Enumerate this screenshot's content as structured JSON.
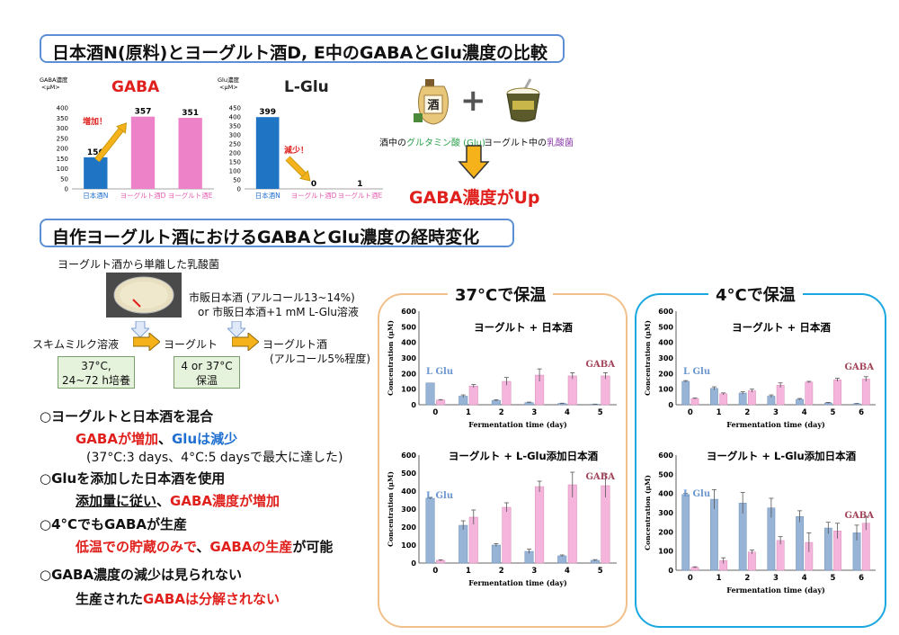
{
  "top_title": "日本酒N(原料)とヨーグルト酒D, E中のGABAとGlu濃度の比較",
  "mid_title": "自作ヨーグルト酒におけるGABAとGlu濃度の経時変化",
  "explain": {
    "sake_label_pre": "酒中の",
    "sake_label_hl": "グルタミン酸 (Glu)",
    "yog_label_pre": "ヨーグルト中の",
    "yog_label_hl": "乳酸菌",
    "plus": "+",
    "result": "GABA濃度がUp",
    "sake_jar_text": "酒"
  },
  "flow": {
    "isolated": "ヨーグルト酒から単離した乳酸菌",
    "sake_line1": "市販日本酒 (アルコール13~14%)",
    "sake_line2": "or  市販日本酒+1 mM L-Glu溶液",
    "skim": "スキムミルク溶液",
    "yogurt": "ヨーグルト",
    "yogurt_sake": "ヨーグルト酒",
    "alcohol": "(アルコール5%程度)",
    "box1_l1": "37°C,",
    "box1_l2": "24~72 h培養",
    "box2_l1": "4 or 37°C",
    "box2_l2": "保温"
  },
  "bullets": {
    "b1": "○ヨーグルトと日本酒を混合",
    "b1a_red": "GABAが増加",
    "b1a_sep": "、",
    "b1a_blue": "Gluは減少",
    "b1b": "(37°C:3 days、4°C:5 daysで最大に達した)",
    "b2": "○Gluを添加した日本酒を使用",
    "b2a_ul": "添加量に従い",
    "b2a_sep": "、",
    "b2a_red": "GABA濃度が増加",
    "b3": "○4°CでもGABAが生産",
    "b3a_red1": "低温での貯蔵のみで",
    "b3a_sep": "、",
    "b3a_red2": "GABAの生産",
    "b3a_tail": "が可能",
    "b4": "○GABA濃度の減少は見られない",
    "b4a_pre": "生産された",
    "b4a_red": "GABAは分解されない"
  },
  "panels": {
    "p37": "37°Cで保温",
    "p4": "4°Cで保温"
  },
  "colors": {
    "blue_bar": "#1f74c4",
    "pink_bar": "#ee82c8",
    "series_blue": "#97b3d6",
    "series_pink": "#f4b4dc",
    "panel37_border": "#f2c08a",
    "panel4_border": "#1aa8e0",
    "title_border": "#5b8fd6",
    "accent_red": "#e0201c"
  },
  "chart_data": [
    {
      "id": "gaba-bar",
      "type": "bar",
      "title": "GABA",
      "ylabel": "GABA濃度",
      "yunit": "<μM>",
      "ylim": [
        0,
        400
      ],
      "yticks": [
        0,
        50,
        100,
        150,
        200,
        250,
        300,
        350,
        400
      ],
      "categories": [
        "日本酒N",
        "ヨーグルト酒D",
        "ヨーグルト酒E"
      ],
      "values": [
        156,
        357,
        351
      ],
      "bar_colors": [
        "#1f74c4",
        "#ee82c8",
        "#ee82c8"
      ],
      "annotation": "増加！"
    },
    {
      "id": "glu-bar",
      "type": "bar",
      "title": "L-Glu",
      "ylabel": "Glu濃度",
      "yunit": "<μM>",
      "ylim": [
        0,
        450
      ],
      "yticks": [
        0,
        50,
        100,
        150,
        200,
        250,
        300,
        350,
        400,
        450
      ],
      "categories": [
        "日本酒N",
        "ヨーグルト酒D",
        "ヨーグルト酒E"
      ],
      "values": [
        399,
        0,
        1
      ],
      "bar_colors": [
        "#1f74c4",
        "#ee82c8",
        "#ee82c8"
      ],
      "annotation": "減少！"
    },
    {
      "id": "c37-a",
      "type": "bar",
      "title": "ヨーグルト + 日本酒",
      "xlabel": "Fermentation time (day)",
      "ylabel": "Concentration (μM)",
      "ylim": [
        0,
        600
      ],
      "yticks": [
        0,
        100,
        200,
        300,
        400,
        500,
        600
      ],
      "x": [
        0,
        1,
        2,
        3,
        4,
        5
      ],
      "label_glu": "L Glu",
      "label_gaba": "GABA",
      "series": [
        {
          "name": "L Glu",
          "values": [
            140,
            55,
            28,
            14,
            8,
            3
          ],
          "err": [
            0,
            8,
            4,
            3,
            2,
            1
          ]
        },
        {
          "name": "GABA",
          "values": [
            30,
            120,
            150,
            190,
            185,
            185
          ],
          "err": [
            3,
            10,
            25,
            40,
            20,
            20
          ]
        }
      ]
    },
    {
      "id": "c4-a",
      "type": "bar",
      "title": "ヨーグルト + 日本酒",
      "xlabel": "Fermentation time (day)",
      "ylabel": "Concentration (μM)",
      "ylim": [
        0,
        600
      ],
      "yticks": [
        0,
        100,
        200,
        300,
        400,
        500,
        600
      ],
      "x": [
        0,
        1,
        2,
        3,
        4,
        5,
        6
      ],
      "label_glu": "L Glu",
      "label_gaba": "GABA",
      "series": [
        {
          "name": "L Glu",
          "values": [
            150,
            105,
            75,
            55,
            35,
            12,
            6
          ],
          "err": [
            5,
            10,
            8,
            8,
            5,
            3,
            2
          ]
        },
        {
          "name": "GABA",
          "values": [
            40,
            70,
            90,
            125,
            145,
            160,
            165
          ],
          "err": [
            3,
            6,
            10,
            15,
            5,
            10,
            15
          ]
        }
      ]
    },
    {
      "id": "c37-b",
      "type": "bar",
      "title": "ヨーグルト + L-Glu添加日本酒",
      "xlabel": "Fermentation time (day)",
      "ylabel": "Concentration (μM)",
      "ylim": [
        0,
        600
      ],
      "yticks": [
        0,
        100,
        200,
        300,
        400,
        500,
        600
      ],
      "x": [
        0,
        1,
        2,
        3,
        4,
        5
      ],
      "label_glu": "L Glu",
      "label_gaba": "GABA",
      "series": [
        {
          "name": "L Glu",
          "values": [
            360,
            210,
            100,
            65,
            40,
            15
          ],
          "err": [
            5,
            25,
            8,
            12,
            5,
            4
          ]
        },
        {
          "name": "GABA",
          "values": [
            15,
            255,
            310,
            425,
            435,
            430
          ],
          "err": [
            3,
            40,
            25,
            30,
            70,
            65
          ]
        }
      ]
    },
    {
      "id": "c4-b",
      "type": "bar",
      "title": "ヨーグルト + L-Glu添加日本酒",
      "xlabel": "Fermentation time (day)",
      "ylabel": "Concentration (μM)",
      "ylim": [
        0,
        600
      ],
      "yticks": [
        0,
        100,
        200,
        300,
        400,
        500,
        600
      ],
      "x": [
        0,
        1,
        2,
        3,
        4,
        5,
        6
      ],
      "label_glu": "L Glu",
      "label_gaba": "GABA",
      "series": [
        {
          "name": "L Glu",
          "values": [
            395,
            370,
            350,
            325,
            280,
            220,
            195
          ],
          "err": [
            5,
            50,
            55,
            50,
            30,
            30,
            40
          ]
        },
        {
          "name": "GABA",
          "values": [
            15,
            50,
            95,
            155,
            145,
            205,
            245
          ],
          "err": [
            3,
            15,
            10,
            20,
            50,
            40,
            35
          ]
        }
      ]
    }
  ]
}
